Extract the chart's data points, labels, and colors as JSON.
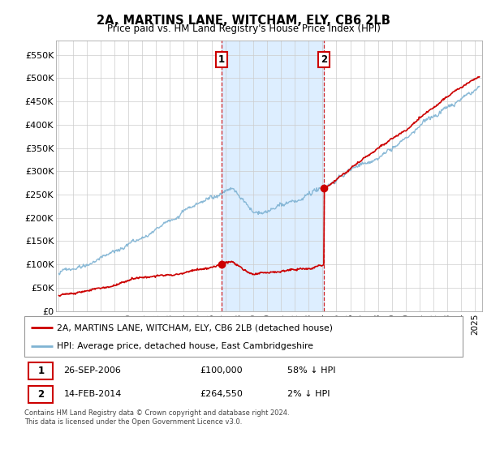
{
  "title": "2A, MARTINS LANE, WITCHAM, ELY, CB6 2LB",
  "subtitle": "Price paid vs. HM Land Registry's House Price Index (HPI)",
  "ylabel_ticks": [
    "£0",
    "£50K",
    "£100K",
    "£150K",
    "£200K",
    "£250K",
    "£300K",
    "£350K",
    "£400K",
    "£450K",
    "£500K",
    "£550K"
  ],
  "ytick_values": [
    0,
    50000,
    100000,
    150000,
    200000,
    250000,
    300000,
    350000,
    400000,
    450000,
    500000,
    550000
  ],
  "ylim": [
    0,
    580000
  ],
  "xlim_start": 1994.8,
  "xlim_end": 2025.5,
  "sale1_date": 2006.74,
  "sale1_price": 100000,
  "sale1_label": "1",
  "sale2_date": 2014.12,
  "sale2_price": 264550,
  "sale2_label": "2",
  "hpi_color": "#7fb3d3",
  "price_color": "#cc0000",
  "highlight_color": "#ddeeff",
  "dashed_color": "#cc0000",
  "legend_label_red": "2A, MARTINS LANE, WITCHAM, ELY, CB6 2LB (detached house)",
  "legend_label_blue": "HPI: Average price, detached house, East Cambridgeshire",
  "table_row1": [
    "1",
    "26-SEP-2006",
    "£100,000",
    "58% ↓ HPI"
  ],
  "table_row2": [
    "2",
    "14-FEB-2014",
    "£264,550",
    "2% ↓ HPI"
  ],
  "footnote": "Contains HM Land Registry data © Crown copyright and database right 2024.\nThis data is licensed under the Open Government Licence v3.0.",
  "background_color": "#ffffff",
  "grid_color": "#cccccc"
}
